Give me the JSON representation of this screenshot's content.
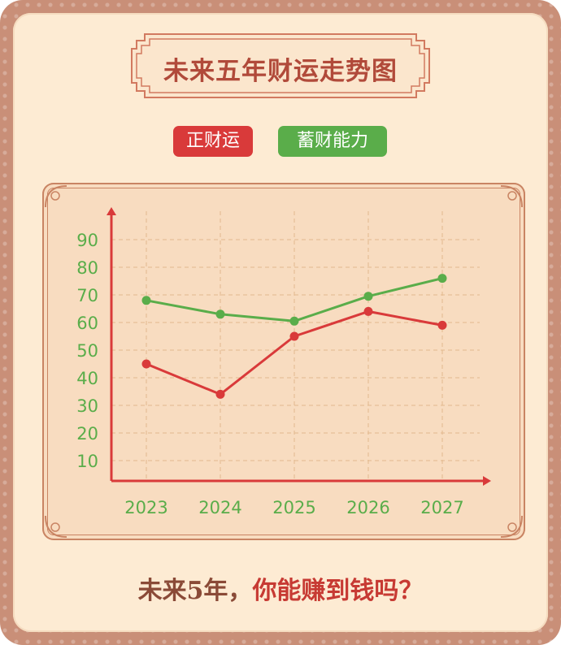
{
  "title": "未来五年财运走势图",
  "bottom": {
    "part1": "未来5年，",
    "part2": "你能赚到钱吗？"
  },
  "colors": {
    "red_series": "#d93a3a",
    "green_series": "#5aad4a",
    "axis": "#d93a3a",
    "tick_text": "#5aad4a",
    "grid": "#e2b98e"
  },
  "chart_data": {
    "type": "line",
    "title": "未来五年财运走势图",
    "categories": [
      "2023",
      "2024",
      "2025",
      "2026",
      "2027"
    ],
    "yticks": [
      10,
      20,
      30,
      40,
      50,
      60,
      70,
      80,
      90
    ],
    "ylim": [
      0,
      100
    ],
    "grid": true,
    "legend_position": "top-center",
    "series": [
      {
        "name": "正财运",
        "values": [
          45,
          34,
          55,
          64,
          59
        ],
        "color": "#d93a3a"
      },
      {
        "name": "蓄财能力",
        "values": [
          68,
          63,
          60.5,
          69.5,
          76
        ],
        "color": "#5aad4a"
      }
    ]
  }
}
